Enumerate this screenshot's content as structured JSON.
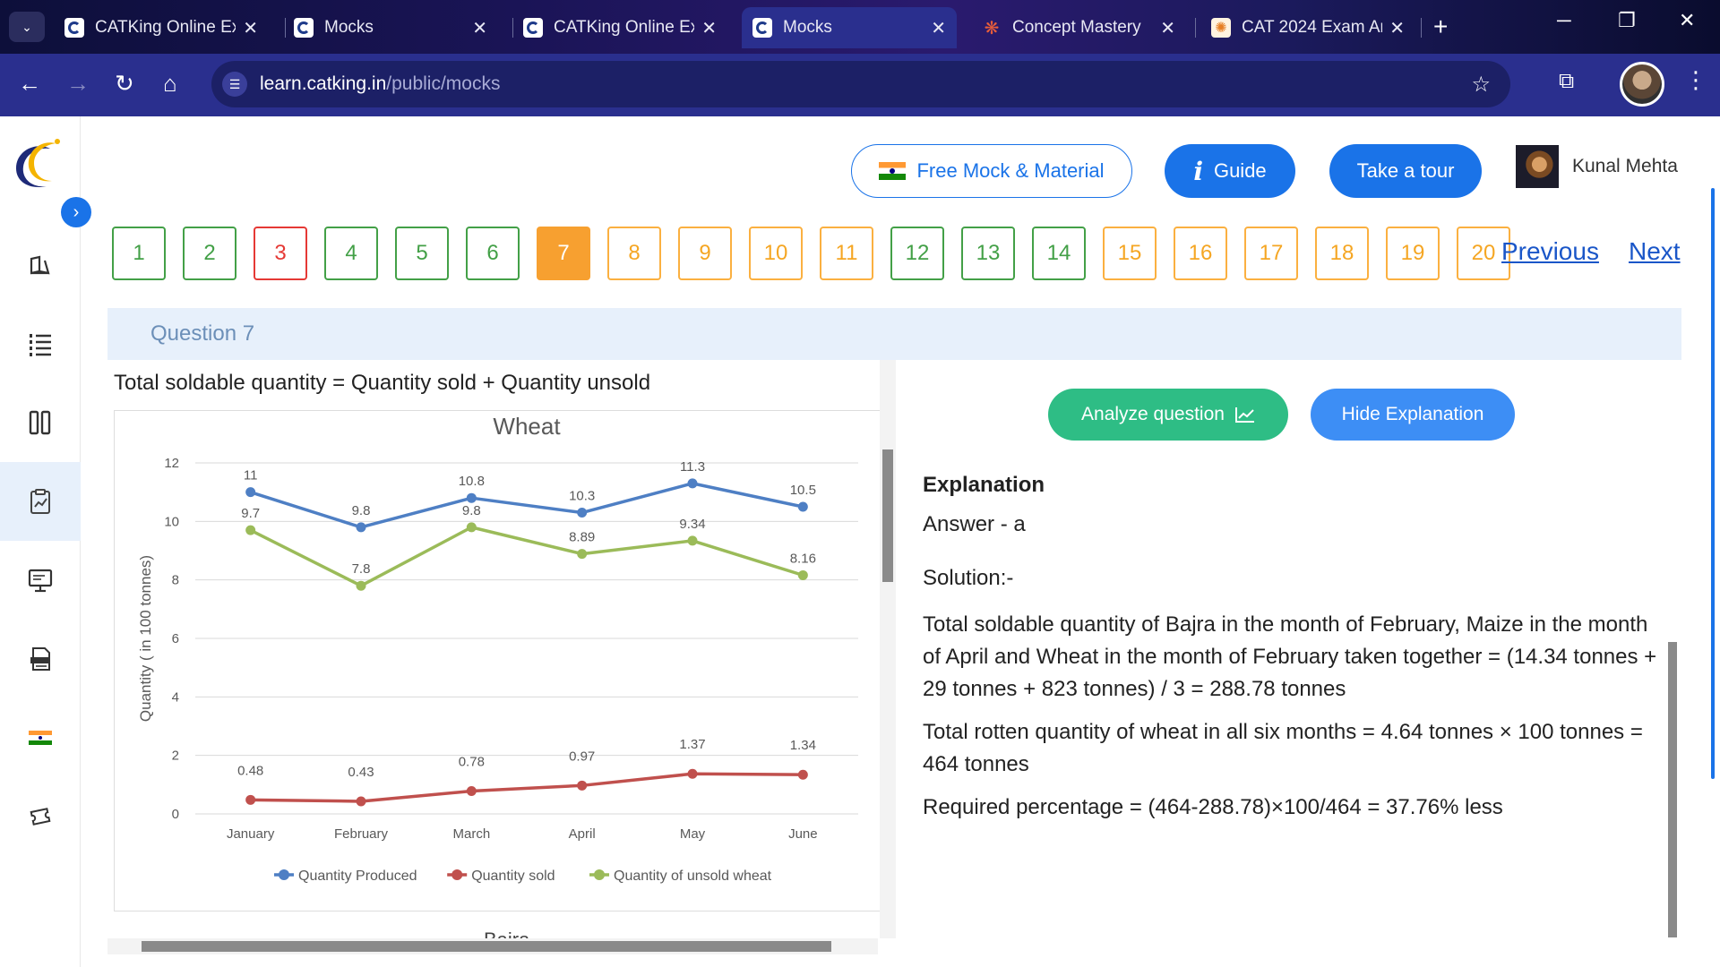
{
  "browser": {
    "tabs": [
      {
        "title": "CATKing Online Ex",
        "active": false
      },
      {
        "title": "Mocks",
        "active": false
      },
      {
        "title": "CATKing Online Ex",
        "active": false
      },
      {
        "title": "Mocks",
        "active": true
      },
      {
        "title": "Concept Mastery",
        "active": false
      },
      {
        "title": "CAT 2024 Exam An",
        "active": false
      }
    ],
    "url_domain": "learn.catking.in",
    "url_path": "/public/mocks"
  },
  "header": {
    "free_mock_label": "Free Mock & Material",
    "guide_label": "Guide",
    "tour_label": "Take a tour",
    "user_name": "Kunal Mehta"
  },
  "question_nav": {
    "numbers": [
      "1",
      "2",
      "3",
      "4",
      "5",
      "6",
      "7",
      "8",
      "9",
      "10",
      "11",
      "12",
      "13",
      "14",
      "15",
      "16",
      "17",
      "18",
      "19",
      "20"
    ],
    "previous_label": "Previous",
    "next_label": "Next"
  },
  "question": {
    "title": "Question 7",
    "formula": "Total soldable quantity = Quantity sold + Quantity unsold",
    "next_chart_title": "Bajra"
  },
  "chart_data": {
    "type": "line",
    "title": "Wheat",
    "ylabel": "Quantity ( in 100 tonnes)",
    "xlabel": "",
    "categories": [
      "January",
      "February",
      "March",
      "April",
      "May",
      "June"
    ],
    "ylim": [
      0,
      12
    ],
    "yticks": [
      "0",
      "2",
      "4",
      "6",
      "8",
      "10",
      "12"
    ],
    "grid": true,
    "legend_position": "bottom",
    "series": [
      {
        "name": "Quantity Produced",
        "color": "#4e7fc4",
        "values": [
          11,
          9.8,
          10.8,
          10.3,
          11.3,
          10.5
        ],
        "labels": [
          "11",
          "9.8",
          "10.8",
          "10.3",
          "11.3",
          "10.5"
        ]
      },
      {
        "name": "Quantity sold",
        "color": "#c0504d",
        "values": [
          0.48,
          0.43,
          0.78,
          0.97,
          1.37,
          1.34
        ],
        "labels": [
          "0.48",
          "0.43",
          "0.78",
          "0.97",
          "1.37",
          "1.34"
        ]
      },
      {
        "name": "Quantity of unsold wheat",
        "color": "#9bbb59",
        "values": [
          9.7,
          7.8,
          9.8,
          8.89,
          9.34,
          8.16
        ],
        "labels": [
          "9.7",
          "7.8",
          "9.8",
          "8.89",
          "9.34",
          "8.16"
        ]
      }
    ]
  },
  "explanation": {
    "analyze_label": "Analyze question",
    "hide_label": "Hide Explanation",
    "heading": "Explanation",
    "answer": "Answer - a",
    "solution_label": "Solution:-",
    "paragraphs": [
      "Total soldable quantity of Bajra in the month of February, Maize in the month of April and Wheat in the month of February taken together = (14.34 tonnes + 29 tonnes + 823 tonnes) / 3 = 288.78 tonnes",
      "Total rotten quantity of wheat in all six months = 4.64 tonnes × 100 tonnes = 464 tonnes",
      "Required percentage = (464-288.78)×100/464 = 37.76% less"
    ]
  },
  "colors": {
    "brand_blue": "#1a73e8",
    "answered_green": "#43a047",
    "marked_red": "#e53935",
    "not_answered_orange": "#f5a623",
    "current_orange": "#f7a030",
    "analyze_green": "#2ebd85"
  },
  "sidebar_icons": [
    "book-icon",
    "list-icon",
    "columns-icon",
    "report-icon",
    "monitor-icon",
    "ebook-icon",
    "india-flag-icon",
    "ticket-icon"
  ]
}
